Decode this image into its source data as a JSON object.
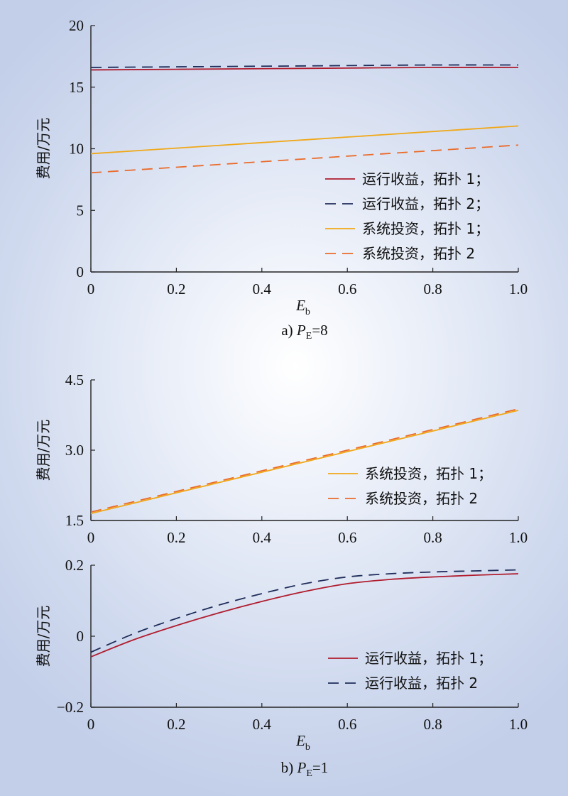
{
  "colors": {
    "red": "#b01c2e",
    "navy": "#1f2d5a",
    "gold": "#f0a818",
    "orange": "#ea6b2a",
    "axis": "#222222"
  },
  "chart_data": [
    {
      "id": "a",
      "type": "line",
      "caption_prefix": "a) ",
      "caption_var": "P",
      "caption_sub": "E",
      "caption_suffix": "=8",
      "xlabel": "E",
      "xlabel_sub": "b",
      "ylabel": "费用/万元",
      "xlim": [
        0,
        1.0
      ],
      "ylim": [
        0,
        20
      ],
      "xticks": [
        "0",
        "0.2",
        "0.4",
        "0.6",
        "0.8",
        "1.0"
      ],
      "yticks": [
        "0",
        "5",
        "10",
        "15",
        "20"
      ],
      "legend_position": "bottom-right",
      "x": [
        0,
        0.2,
        0.4,
        0.6,
        0.8,
        1.0
      ],
      "series": [
        {
          "name": "运行收益，拓扑 1；",
          "color": "#b01c2e",
          "dash": false,
          "values": [
            16.4,
            16.45,
            16.5,
            16.55,
            16.6,
            16.6
          ]
        },
        {
          "name": "运行收益，拓扑 2；",
          "color": "#1f2d5a",
          "dash": true,
          "values": [
            16.6,
            16.65,
            16.7,
            16.75,
            16.8,
            16.8
          ]
        },
        {
          "name": "系统投资，拓扑 1；",
          "color": "#f0a818",
          "dash": false,
          "values": [
            9.6,
            10.05,
            10.5,
            10.95,
            11.4,
            11.85
          ]
        },
        {
          "name": "系统投资，拓扑 2",
          "color": "#ea6b2a",
          "dash": true,
          "values": [
            8.05,
            8.5,
            8.95,
            9.4,
            9.85,
            10.3
          ]
        }
      ]
    },
    {
      "id": "b-top",
      "type": "line",
      "ylabel": "费用/万元",
      "xlim": [
        0,
        1.0
      ],
      "ylim": [
        1.5,
        4.5
      ],
      "xticks": [
        "0",
        "0.2",
        "0.4",
        "0.6",
        "0.8",
        "1.0"
      ],
      "yticks": [
        "1.5",
        "3.0",
        "4.5"
      ],
      "legend_position": "bottom-right",
      "x": [
        0,
        0.2,
        0.4,
        0.6,
        0.8,
        1.0
      ],
      "series": [
        {
          "name": "系统投资，拓扑 1；",
          "color": "#f0a818",
          "dash": false,
          "values": [
            1.65,
            2.09,
            2.53,
            2.97,
            3.41,
            3.85
          ]
        },
        {
          "name": "系统投资，拓扑 2",
          "color": "#ea6b2a",
          "dash": true,
          "values": [
            1.68,
            2.12,
            2.56,
            3.0,
            3.44,
            3.88
          ]
        }
      ]
    },
    {
      "id": "b-bottom",
      "type": "line",
      "caption_prefix": "b) ",
      "caption_var": "P",
      "caption_sub": "E",
      "caption_suffix": "=1",
      "xlabel": "E",
      "xlabel_sub": "b",
      "ylabel": "费用/万元",
      "xlim": [
        0,
        1.0
      ],
      "ylim": [
        -0.2,
        0.2
      ],
      "xticks": [
        "0",
        "0.2",
        "0.4",
        "0.6",
        "0.8",
        "1.0"
      ],
      "yticks": [
        "−0.2",
        "0",
        "0.2"
      ],
      "legend_position": "bottom-right",
      "x": [
        0,
        0.1,
        0.2,
        0.3,
        0.4,
        0.5,
        0.6,
        0.7,
        0.8,
        0.9,
        1.0
      ],
      "series": [
        {
          "name": "运行收益，拓扑 1；",
          "color": "#b01c2e",
          "dash": false,
          "values": [
            -0.058,
            -0.01,
            0.03,
            0.066,
            0.098,
            0.126,
            0.148,
            0.16,
            0.167,
            0.172,
            0.176
          ]
        },
        {
          "name": "运行收益，拓扑 2",
          "color": "#1f2d5a",
          "dash": true,
          "values": [
            -0.045,
            0.007,
            0.05,
            0.088,
            0.12,
            0.148,
            0.167,
            0.176,
            0.181,
            0.184,
            0.187
          ]
        }
      ]
    }
  ]
}
